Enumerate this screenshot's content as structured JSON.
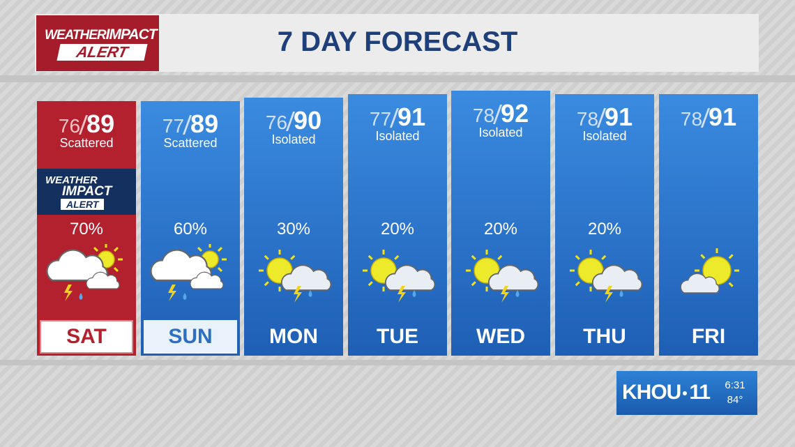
{
  "header": {
    "logo": {
      "weather": "WEATHER",
      "impact": "IMPACT",
      "alert": "ALERT"
    },
    "title": "7 DAY FORECAST"
  },
  "days": [
    {
      "day": "SAT",
      "low": 76,
      "high": 89,
      "condition": "Scattered",
      "precip": "70%",
      "alert": {
        "line1": "WEATHER",
        "line2": "IMPACT",
        "line3": "ALERT"
      }
    },
    {
      "day": "SUN",
      "low": 77,
      "high": 89,
      "condition": "Scattered",
      "precip": "60%"
    },
    {
      "day": "MON",
      "low": 76,
      "high": 90,
      "condition": "Isolated",
      "precip": "30%"
    },
    {
      "day": "TUE",
      "low": 77,
      "high": 91,
      "condition": "Isolated",
      "precip": "20%"
    },
    {
      "day": "WED",
      "low": 78,
      "high": 92,
      "condition": "Isolated",
      "precip": "20%"
    },
    {
      "day": "THU",
      "low": 78,
      "high": 91,
      "condition": "Isolated",
      "precip": "20%"
    },
    {
      "day": "FRI",
      "low": 78,
      "high": 91
    }
  ],
  "station": {
    "name": "KHOU",
    "number": "11",
    "time": "6:31",
    "temp": "84°"
  }
}
